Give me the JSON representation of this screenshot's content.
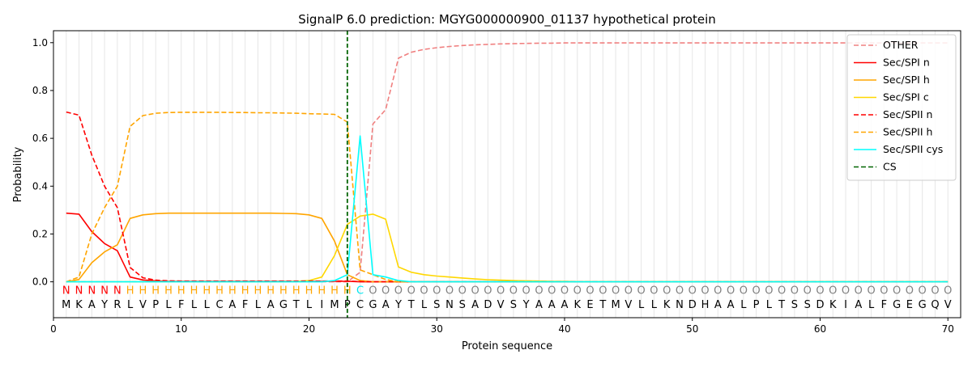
{
  "chart_data": {
    "type": "line",
    "title": "SignalP 6.0 prediction: MGYG000000900_01137 hypothetical protein",
    "xlabel": "Protein sequence",
    "ylabel": "Probability",
    "xlim": [
      0,
      71
    ],
    "ylim": [
      -0.15,
      1.05
    ],
    "x_ticks": [
      0,
      10,
      20,
      30,
      40,
      50,
      60,
      70
    ],
    "y_ticks": [
      0.0,
      0.2,
      0.4,
      0.6,
      0.8,
      1.0
    ],
    "x_tick_labels": [
      "0",
      "10",
      "20",
      "30",
      "40",
      "50",
      "60",
      "70"
    ],
    "y_tick_labels": [
      "0.0",
      "0.2",
      "0.4",
      "0.6",
      "0.8",
      "1.0"
    ],
    "grid": "vertical lines at every residue",
    "legend_position": "top-right",
    "sequence": [
      "M",
      "K",
      "A",
      "Y",
      "R",
      "L",
      "V",
      "P",
      "L",
      "F",
      "L",
      "L",
      "C",
      "A",
      "F",
      "L",
      "A",
      "G",
      "T",
      "L",
      "I",
      "M",
      "P",
      "C",
      "G",
      "A",
      "Y",
      "T",
      "L",
      "S",
      "N",
      "S",
      "A",
      "D",
      "V",
      "S",
      "Y",
      "A",
      "A",
      "A",
      "K",
      "E",
      "T",
      "M",
      "V",
      "L",
      "L",
      "K",
      "N",
      "D",
      "H",
      "A",
      "A",
      "L",
      "P",
      "L",
      "T",
      "S",
      "S",
      "D",
      "K",
      "I",
      "A",
      "L",
      "F",
      "G",
      "E",
      "G",
      "Q",
      "V"
    ],
    "region_labels": [
      "N",
      "N",
      "N",
      "N",
      "N",
      "H",
      "H",
      "H",
      "H",
      "H",
      "H",
      "H",
      "H",
      "H",
      "H",
      "H",
      "H",
      "H",
      "H",
      "H",
      "H",
      "H",
      "H",
      "C",
      "O",
      "O",
      "O",
      "O",
      "O",
      "O",
      "O",
      "O",
      "O",
      "O",
      "O",
      "O",
      "O",
      "O",
      "O",
      "O",
      "O",
      "O",
      "O",
      "O",
      "O",
      "O",
      "O",
      "O",
      "O",
      "O",
      "O",
      "O",
      "O",
      "O",
      "O",
      "O",
      "O",
      "O",
      "O",
      "O",
      "O",
      "O",
      "O",
      "O",
      "O",
      "O",
      "O",
      "O",
      "O",
      "O"
    ],
    "region_colors": {
      "N": "#ff0000",
      "H": "#ffa500",
      "C": "#00e5ee",
      "O": "#808080"
    },
    "cs_position": 23,
    "series": [
      {
        "name": "OTHER",
        "color": "#f08080",
        "dash": "dashed",
        "values": [
          0.0,
          0.0,
          0.0,
          0.0,
          0.0,
          0.0,
          0.0,
          0.0,
          0.0,
          0.0,
          0.0,
          0.0,
          0.0,
          0.0,
          0.0,
          0.0,
          0.0,
          0.0,
          0.0,
          0.0,
          0.0,
          0.0,
          0.0,
          0.04,
          0.66,
          0.72,
          0.935,
          0.96,
          0.972,
          0.979,
          0.984,
          0.988,
          0.991,
          0.993,
          0.995,
          0.996,
          0.997,
          0.998,
          0.998,
          0.999,
          0.999,
          0.999,
          0.999,
          0.999,
          0.999,
          0.999,
          0.999,
          0.999,
          0.999,
          0.999,
          0.999,
          0.999,
          0.999,
          0.999,
          0.999,
          0.999,
          0.999,
          0.999,
          0.999,
          0.999,
          0.999,
          0.999,
          0.999,
          0.999,
          0.999,
          0.999,
          0.999,
          0.999,
          0.999,
          0.999
        ]
      },
      {
        "name": "Sec/SPI n",
        "color": "#ff0000",
        "dash": "solid",
        "values": [
          0.287,
          0.283,
          0.21,
          0.16,
          0.13,
          0.02,
          0.008,
          0.004,
          0.002,
          0.002,
          0.002,
          0.002,
          0.002,
          0.002,
          0.002,
          0.002,
          0.002,
          0.002,
          0.002,
          0.002,
          0.002,
          0.002,
          0.002,
          0.0,
          0.0,
          0.0,
          0.0,
          0.0,
          0.0,
          0.0,
          0.0,
          0.0,
          0.0,
          0.0,
          0.0,
          0.0,
          0.0,
          0.0,
          0.0,
          0.0,
          0.0,
          0.0,
          0.0,
          0.0,
          0.0,
          0.0,
          0.0,
          0.0,
          0.0,
          0.0,
          0.0,
          0.0,
          0.0,
          0.0,
          0.0,
          0.0,
          0.0,
          0.0,
          0.0,
          0.0,
          0.0,
          0.0,
          0.0,
          0.0,
          0.0,
          0.0,
          0.0,
          0.0,
          0.0,
          0.0
        ]
      },
      {
        "name": "Sec/SPI h",
        "color": "#ffa500",
        "dash": "solid",
        "values": [
          0.0,
          0.01,
          0.08,
          0.125,
          0.155,
          0.265,
          0.28,
          0.285,
          0.287,
          0.287,
          0.287,
          0.287,
          0.287,
          0.287,
          0.287,
          0.287,
          0.287,
          0.286,
          0.285,
          0.28,
          0.265,
          0.17,
          0.03,
          0.005,
          0.0,
          0.0,
          0.0,
          0.0,
          0.0,
          0.0,
          0.0,
          0.0,
          0.0,
          0.0,
          0.0,
          0.0,
          0.0,
          0.0,
          0.0,
          0.0,
          0.0,
          0.0,
          0.0,
          0.0,
          0.0,
          0.0,
          0.0,
          0.0,
          0.0,
          0.0,
          0.0,
          0.0,
          0.0,
          0.0,
          0.0,
          0.0,
          0.0,
          0.0,
          0.0,
          0.0,
          0.0,
          0.0,
          0.0,
          0.0,
          0.0,
          0.0,
          0.0,
          0.0,
          0.0,
          0.0
        ]
      },
      {
        "name": "Sec/SPI c",
        "color": "#ffd700",
        "dash": "solid",
        "values": [
          0.0,
          0.0,
          0.0,
          0.0,
          0.0,
          0.0,
          0.0,
          0.0,
          0.0,
          0.0,
          0.0,
          0.0,
          0.0,
          0.0,
          0.0,
          0.0,
          0.0,
          0.0,
          0.002,
          0.005,
          0.02,
          0.11,
          0.24,
          0.275,
          0.283,
          0.262,
          0.062,
          0.04,
          0.03,
          0.024,
          0.02,
          0.016,
          0.012,
          0.009,
          0.007,
          0.005,
          0.004,
          0.003,
          0.002,
          0.002,
          0.001,
          0.001,
          0.001,
          0.001,
          0.001,
          0.001,
          0.001,
          0.001,
          0.001,
          0.001,
          0.001,
          0.001,
          0.001,
          0.001,
          0.001,
          0.001,
          0.001,
          0.001,
          0.001,
          0.001,
          0.001,
          0.001,
          0.001,
          0.001,
          0.001,
          0.001,
          0.001,
          0.001,
          0.001,
          0.001
        ]
      },
      {
        "name": "Sec/SPII n",
        "color": "#ff0000",
        "dash": "dashed",
        "values": [
          0.71,
          0.697,
          0.53,
          0.4,
          0.31,
          0.06,
          0.017,
          0.007,
          0.004,
          0.003,
          0.003,
          0.003,
          0.003,
          0.003,
          0.003,
          0.003,
          0.003,
          0.003,
          0.003,
          0.003,
          0.003,
          0.003,
          0.003,
          0.001,
          0.0,
          0.0,
          0.0,
          0.0,
          0.0,
          0.0,
          0.0,
          0.0,
          0.0,
          0.0,
          0.0,
          0.0,
          0.0,
          0.0,
          0.0,
          0.0,
          0.0,
          0.0,
          0.0,
          0.0,
          0.0,
          0.0,
          0.0,
          0.0,
          0.0,
          0.0,
          0.0,
          0.0,
          0.0,
          0.0,
          0.0,
          0.0,
          0.0,
          0.0,
          0.0,
          0.0,
          0.0,
          0.0,
          0.0,
          0.0,
          0.0,
          0.0,
          0.0,
          0.0,
          0.0,
          0.0
        ]
      },
      {
        "name": "Sec/SPII h",
        "color": "#ffa500",
        "dash": "dashed",
        "values": [
          0.0,
          0.02,
          0.2,
          0.31,
          0.4,
          0.65,
          0.695,
          0.705,
          0.708,
          0.709,
          0.709,
          0.709,
          0.709,
          0.708,
          0.708,
          0.707,
          0.707,
          0.706,
          0.705,
          0.703,
          0.702,
          0.7,
          0.668,
          0.05,
          0.03,
          0.01,
          0.0,
          0.0,
          0.0,
          0.0,
          0.0,
          0.0,
          0.0,
          0.0,
          0.0,
          0.0,
          0.0,
          0.0,
          0.0,
          0.0,
          0.0,
          0.0,
          0.0,
          0.0,
          0.0,
          0.0,
          0.0,
          0.0,
          0.0,
          0.0,
          0.0,
          0.0,
          0.0,
          0.0,
          0.0,
          0.0,
          0.0,
          0.0,
          0.0,
          0.0,
          0.0,
          0.0,
          0.0,
          0.0,
          0.0,
          0.0,
          0.0,
          0.0,
          0.0,
          0.0
        ]
      },
      {
        "name": "Sec/SPII cys",
        "color": "#00ffff",
        "dash": "solid",
        "values": [
          0.0,
          0.0,
          0.0,
          0.0,
          0.0,
          0.0,
          0.0,
          0.0,
          0.0,
          0.0,
          0.0,
          0.0,
          0.0,
          0.0,
          0.0,
          0.0,
          0.0,
          0.0,
          0.0,
          0.0,
          0.0,
          0.005,
          0.03,
          0.61,
          0.03,
          0.02,
          0.005,
          0.0,
          0.0,
          0.0,
          0.0,
          0.0,
          0.0,
          0.0,
          0.0,
          0.0,
          0.0,
          0.0,
          0.0,
          0.0,
          0.0,
          0.0,
          0.0,
          0.0,
          0.0,
          0.0,
          0.0,
          0.0,
          0.0,
          0.0,
          0.0,
          0.0,
          0.0,
          0.0,
          0.0,
          0.0,
          0.0,
          0.0,
          0.0,
          0.0,
          0.0,
          0.0,
          0.0,
          0.0,
          0.0,
          0.0,
          0.0,
          0.0,
          0.0,
          0.0
        ]
      }
    ],
    "legend_entries": [
      {
        "name": "OTHER",
        "color": "#f08080",
        "dash": "dashed"
      },
      {
        "name": "Sec/SPI n",
        "color": "#ff0000",
        "dash": "solid"
      },
      {
        "name": "Sec/SPI h",
        "color": "#ffa500",
        "dash": "solid"
      },
      {
        "name": "Sec/SPI c",
        "color": "#ffd700",
        "dash": "solid"
      },
      {
        "name": "Sec/SPII n",
        "color": "#ff0000",
        "dash": "dashed"
      },
      {
        "name": "Sec/SPII h",
        "color": "#ffa500",
        "dash": "dashed"
      },
      {
        "name": "Sec/SPII cys",
        "color": "#00ffff",
        "dash": "solid"
      },
      {
        "name": "CS",
        "color": "#006400",
        "dash": "dashed"
      }
    ]
  }
}
